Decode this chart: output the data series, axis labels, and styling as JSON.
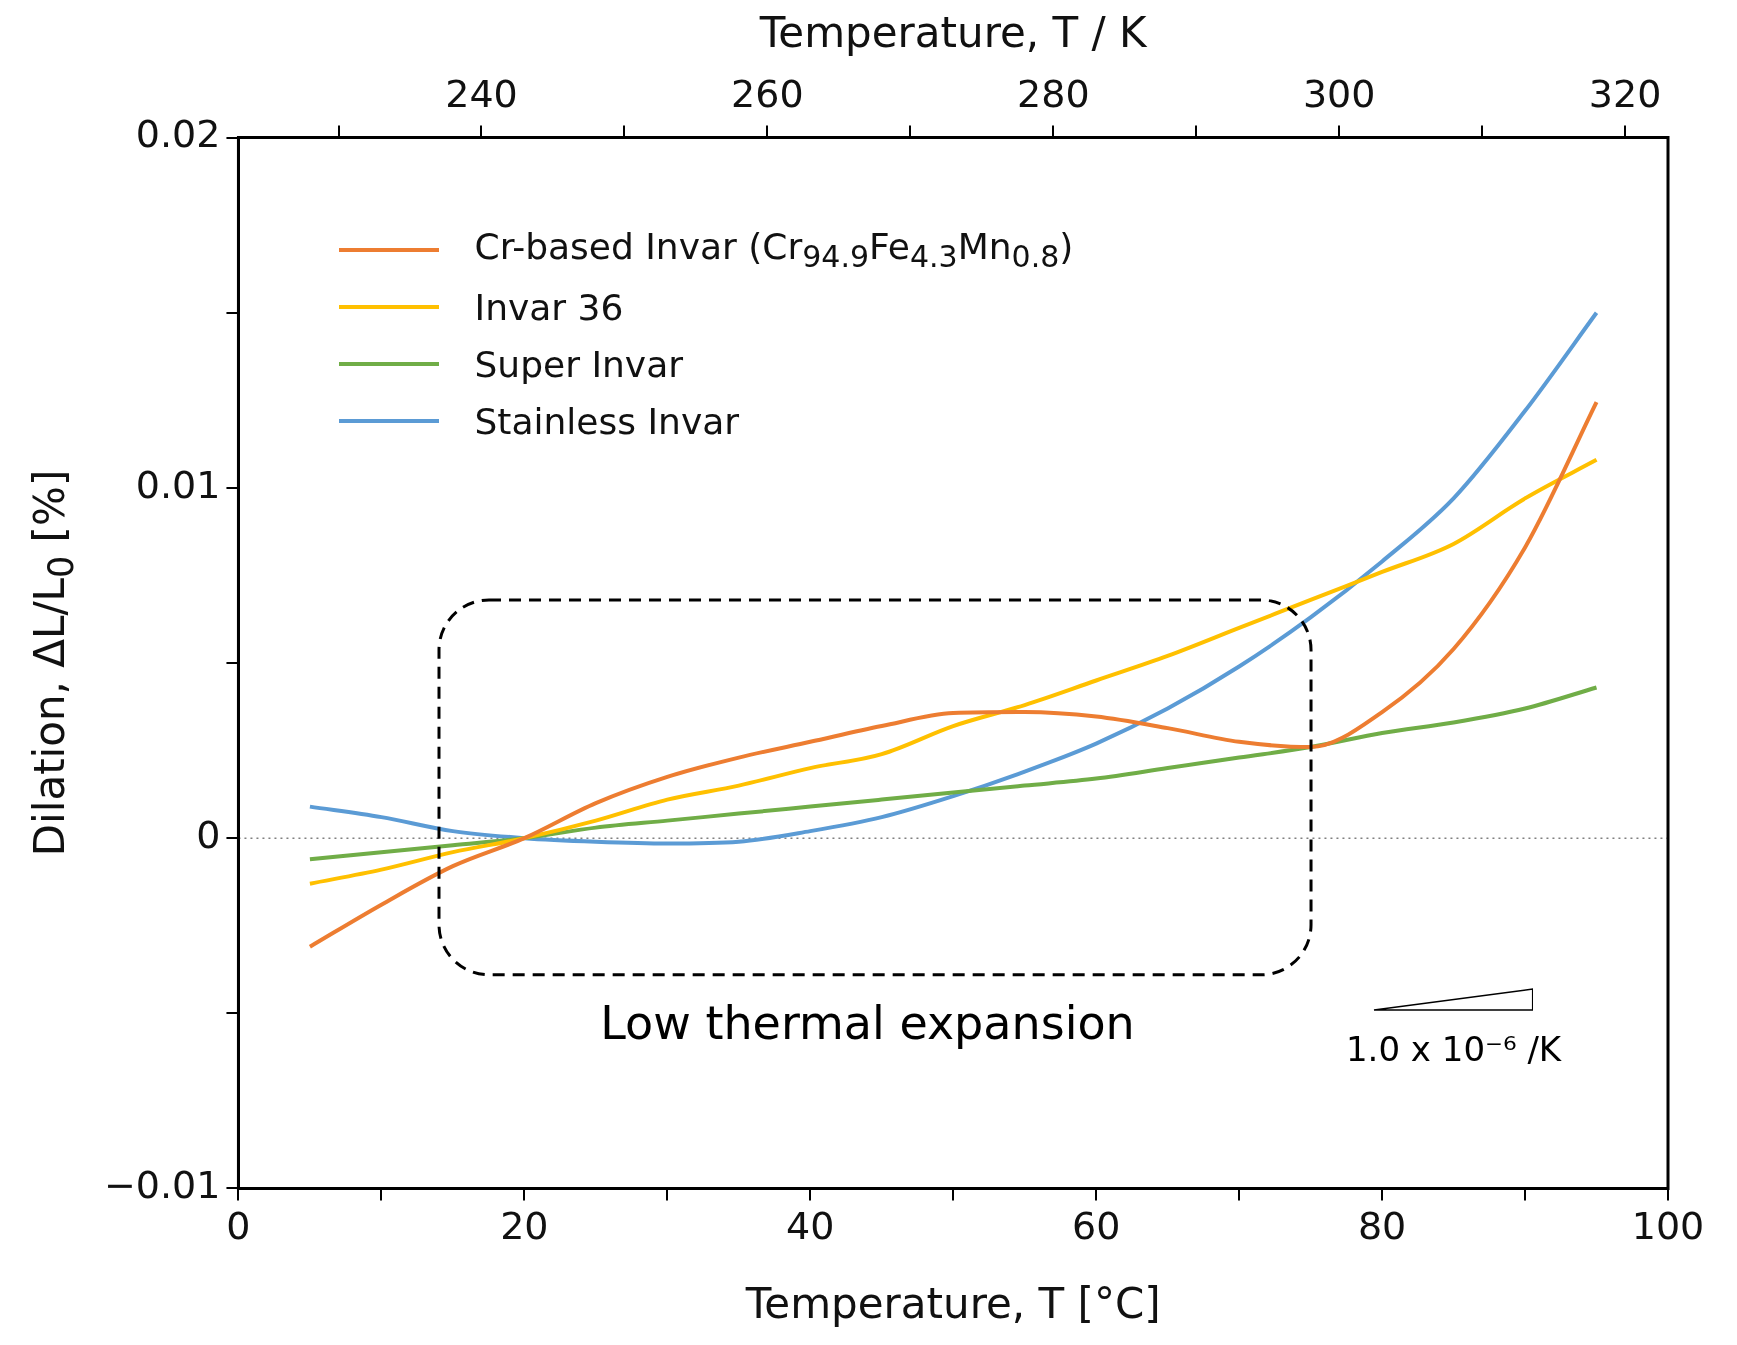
{
  "chart_data": {
    "type": "line",
    "xlabel": "Temperature, T [°C]",
    "ylabel": "Dilation, ΔL/L$_{0}$ [%]",
    "x2label": "Temperature, T / K",
    "xlim": [
      0,
      100
    ],
    "xticks": [
      0,
      {
        "value": 10,
        "label": null
      },
      20,
      {
        "value": 30,
        "label": null
      },
      40,
      {
        "value": 50,
        "label": null
      },
      60,
      {
        "value": 70,
        "label": null
      },
      80,
      {
        "value": 90,
        "label": null
      },
      100
    ],
    "x2lim": [
      223,
      323
    ],
    "x2ticks": [
      {
        "value": 230,
        "label": null
      },
      240,
      {
        "value": 250,
        "label": null
      },
      260,
      {
        "value": 270,
        "label": null
      },
      280,
      {
        "value": 290,
        "label": null
      },
      300,
      {
        "value": 310,
        "label": null
      },
      320
    ],
    "ylim": [
      -0.01,
      0.02
    ],
    "yticks": [
      -0.01,
      {
        "value": -0.005,
        "label": null
      },
      0,
      {
        "value": 0.005,
        "label": null
      },
      0.01,
      {
        "value": 0.015,
        "label": null
      },
      0.02
    ],
    "x": [
      5,
      10,
      15,
      20,
      25,
      30,
      35,
      40,
      45,
      50,
      55,
      60,
      65,
      70,
      75,
      80,
      85,
      90,
      95
    ],
    "series": [
      {
        "name": "Cr-based Invar (Cr$_{94.9}$Fe$_{4.3}$Mn$_{0.8}$)",
        "color": "#ed7d31",
        "values": [
          -0.0031,
          -0.0019,
          -0.0008,
          0,
          0.001,
          0.00175,
          0.0023,
          0.00275,
          0.0032,
          0.00357,
          0.0036,
          0.00347,
          0.00314,
          0.00275,
          0.0026,
          0.0036,
          0.0054,
          0.0083,
          0.01245
        ]
      },
      {
        "name": "Invar 36",
        "color": "#ffc000",
        "values": [
          -0.0013,
          -0.0009,
          -0.0004,
          0,
          0.0005,
          0.0011,
          0.0015,
          0.002,
          0.0024,
          0.0032,
          0.0038,
          0.0045,
          0.0052,
          0.006,
          0.0068,
          0.0076,
          0.0084,
          0.0097,
          0.0108
        ]
      },
      {
        "name": "Super Invar",
        "color": "#70ad47",
        "values": [
          -0.0006,
          -0.0004,
          -0.0002,
          0,
          0.0003,
          0.0005,
          0.0007,
          0.0009,
          0.0011,
          0.0013,
          0.0015,
          0.0017,
          0.002,
          0.0023,
          0.0026,
          0.003,
          0.0033,
          0.0037,
          0.0043
        ]
      },
      {
        "name": "Stainless Invar",
        "color": "#5b9bd5",
        "values": [
          0.0009,
          0.0006,
          0.0002,
          0,
          -0.0001,
          -0.00015,
          -0.0001,
          0.0002,
          0.0006,
          0.0012,
          0.0019,
          0.0027,
          0.0037,
          0.0049,
          0.0063,
          0.0079,
          0.0097,
          0.0122,
          0.015
        ]
      }
    ],
    "ref_lines": [
      {
        "axis": "y",
        "value": 0,
        "color": "#808080",
        "line_style": "dotted"
      }
    ],
    "annotations": [
      "Low thermal expansion",
      "1.0 x 10⁻⁶ /K"
    ],
    "legend": "top left",
    "grid": false,
    "marker": "none",
    "line_style": "solid"
  }
}
